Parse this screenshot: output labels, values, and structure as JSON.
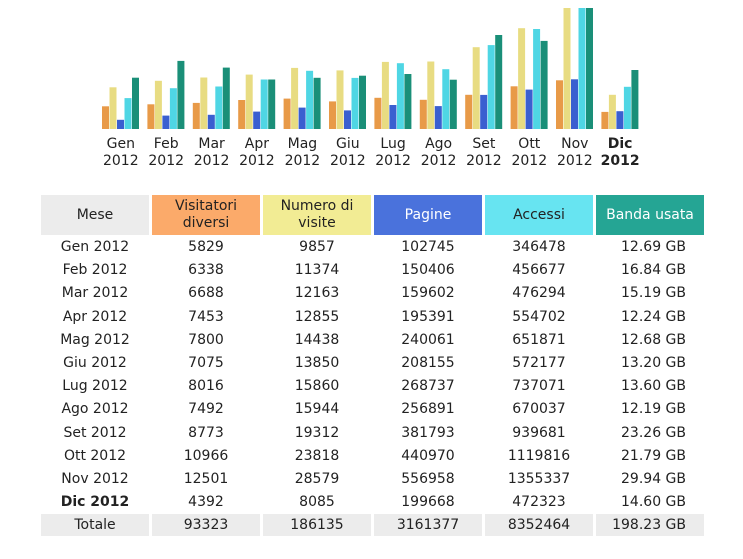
{
  "colors": {
    "visitatori": "#e89a48",
    "visite": "#e8dc82",
    "pagine": "#3a5fd0",
    "accessi": "#4fd6e4",
    "banda": "#1a8f78"
  },
  "table": {
    "headers": [
      "Mese",
      "Visitatori diversi",
      "Numero di visite",
      "Pagine",
      "Accessi",
      "Banda usata"
    ],
    "rows": [
      [
        "Gen 2012",
        "5829",
        "9857",
        "102745",
        "346478",
        "12.69 GB"
      ],
      [
        "Feb 2012",
        "6338",
        "11374",
        "150406",
        "456677",
        "16.84 GB"
      ],
      [
        "Mar 2012",
        "6688",
        "12163",
        "159602",
        "476294",
        "15.19 GB"
      ],
      [
        "Apr 2012",
        "7453",
        "12855",
        "195391",
        "554702",
        "12.24 GB"
      ],
      [
        "Mag 2012",
        "7800",
        "14438",
        "240061",
        "651871",
        "12.68 GB"
      ],
      [
        "Giu 2012",
        "7075",
        "13850",
        "208155",
        "572177",
        "13.20 GB"
      ],
      [
        "Lug 2012",
        "8016",
        "15860",
        "268737",
        "737071",
        "13.60 GB"
      ],
      [
        "Ago 2012",
        "7492",
        "15944",
        "256891",
        "670037",
        "12.19 GB"
      ],
      [
        "Set 2012",
        "8773",
        "19312",
        "381793",
        "939681",
        "23.26 GB"
      ],
      [
        "Ott 2012",
        "10966",
        "23818",
        "440970",
        "1119816",
        "21.79 GB"
      ],
      [
        "Nov 2012",
        "12501",
        "28579",
        "556958",
        "1355337",
        "29.94 GB"
      ],
      [
        "Dic 2012",
        "4392",
        "8085",
        "199668",
        "472323",
        "14.60 GB"
      ]
    ],
    "total": [
      "Totale",
      "93323",
      "186135",
      "3161377",
      "8352464",
      "198.23 GB"
    ]
  },
  "chart_data": {
    "type": "bar",
    "categories": [
      "Gen 2012",
      "Feb 2012",
      "Mar 2012",
      "Apr 2012",
      "Mag 2012",
      "Giu 2012",
      "Lug 2012",
      "Ago 2012",
      "Set 2012",
      "Ott 2012",
      "Nov 2012",
      "Dic 2012"
    ],
    "tick_labels": [
      [
        "Gen",
        "2012"
      ],
      [
        "Feb",
        "2012"
      ],
      [
        "Mar",
        "2012"
      ],
      [
        "Apr",
        "2012"
      ],
      [
        "Mag",
        "2012"
      ],
      [
        "Giu",
        "2012"
      ],
      [
        "Lug",
        "2012"
      ],
      [
        "Ago",
        "2012"
      ],
      [
        "Set",
        "2012"
      ],
      [
        "Ott",
        "2012"
      ],
      [
        "Nov",
        "2012"
      ],
      [
        "Dic",
        "2012"
      ]
    ],
    "current_category": "Dic 2012",
    "series": [
      {
        "values": [
          5829,
          6338,
          6688,
          7453,
          7800,
          7075,
          8016,
          7492,
          8773,
          10966,
          12501,
          4392
        ]
      },
      {
        "values": [
          9857,
          11374,
          12163,
          12855,
          14438,
          13850,
          15860,
          15944,
          19312,
          23818,
          28579,
          8085
        ]
      },
      {
        "values": [
          102745,
          150406,
          159602,
          195391,
          240061,
          208155,
          268737,
          256891,
          381793,
          440970,
          556958,
          199668
        ]
      },
      {
        "values": [
          346478,
          456677,
          476294,
          554702,
          651871,
          572177,
          737071,
          670037,
          939681,
          1119816,
          1355337,
          472323
        ]
      },
      {
        "values": [
          12.69,
          16.84,
          15.19,
          12.24,
          12.68,
          13.2,
          13.6,
          12.19,
          23.26,
          21.79,
          29.94,
          14.6
        ]
      }
    ],
    "scale_groups": [
      [
        0,
        1
      ],
      [
        2,
        3
      ],
      [
        4
      ]
    ],
    "grid": false,
    "legend": "none"
  }
}
